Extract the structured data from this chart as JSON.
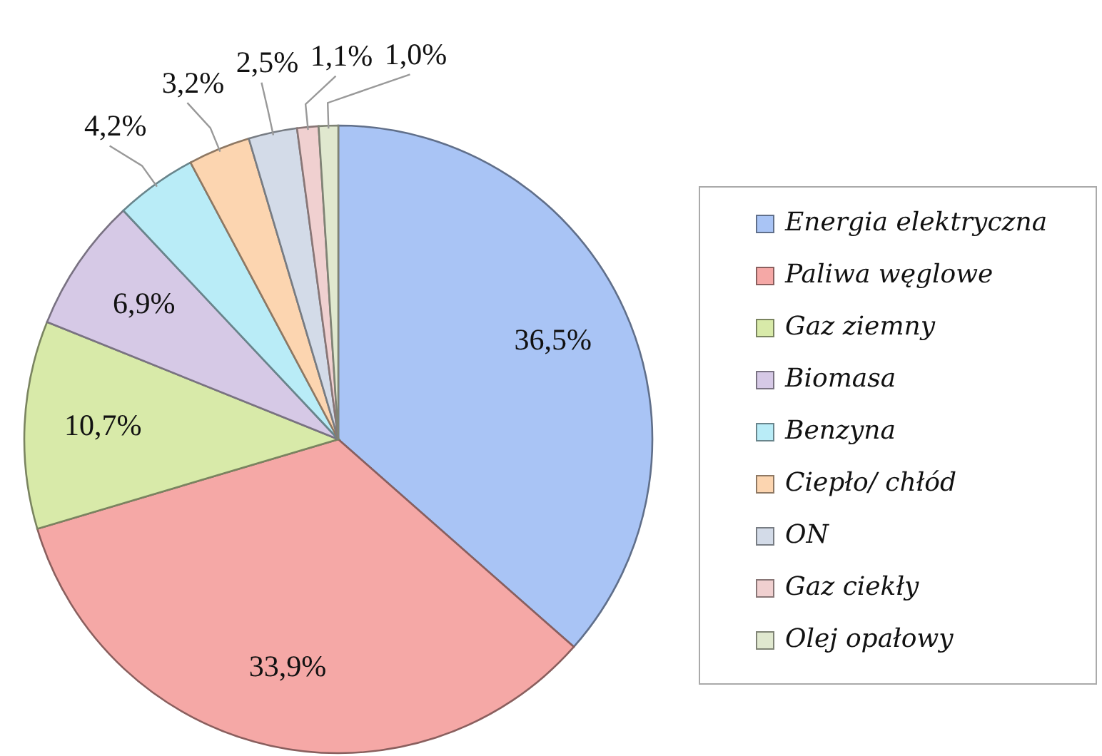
{
  "chart_data": {
    "type": "pie",
    "categories": [
      "Energia elektryczna",
      "Paliwa węglowe",
      "Gaz ziemny",
      "Biomasa",
      "Benzyna",
      "Ciepło/ chłód",
      "ON",
      "Gaz ciekły",
      "Olej opałowy"
    ],
    "values": [
      36.5,
      33.9,
      10.7,
      6.9,
      4.2,
      3.2,
      2.5,
      1.1,
      1.0
    ],
    "colors": [
      "#a9c4f5",
      "#f5a8a6",
      "#d8eaa9",
      "#d6c9e6",
      "#b9ecf7",
      "#fcd5b0",
      "#d3dbe8",
      "#f0d0d0",
      "#e0e8cf"
    ],
    "value_labels": [
      "36,5%",
      "33,9%",
      "10,7%",
      "6,9%",
      "4,2%",
      "3,2%",
      "2,5%",
      "1,1%",
      "1,0%"
    ],
    "legend": "right"
  }
}
